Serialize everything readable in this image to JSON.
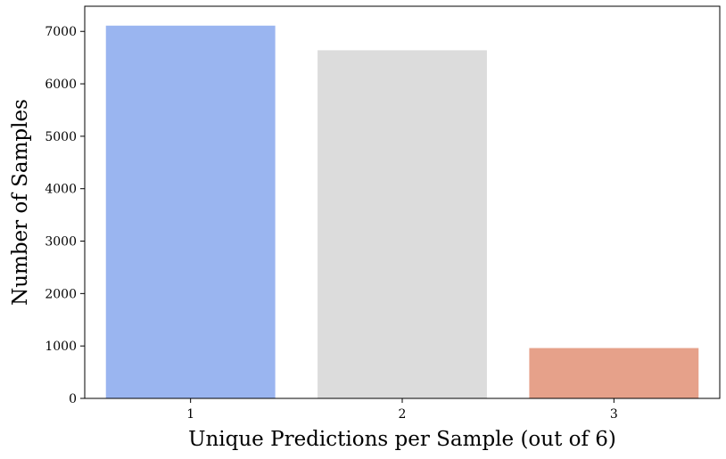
{
  "chart_data": {
    "type": "bar",
    "title": "",
    "xlabel": "Unique Predictions per Sample (out of 6)",
    "ylabel": "Number of Samples",
    "categories": [
      "1",
      "2",
      "3"
    ],
    "values": [
      7110,
      6640,
      960
    ],
    "colors": [
      "#9ab5f0",
      "#dcdcdc",
      "#e6a18a"
    ],
    "ylim": [
      0,
      7480
    ],
    "yticks": [
      0,
      1000,
      2000,
      3000,
      4000,
      5000,
      6000,
      7000
    ],
    "grid": false,
    "legend": "none"
  }
}
